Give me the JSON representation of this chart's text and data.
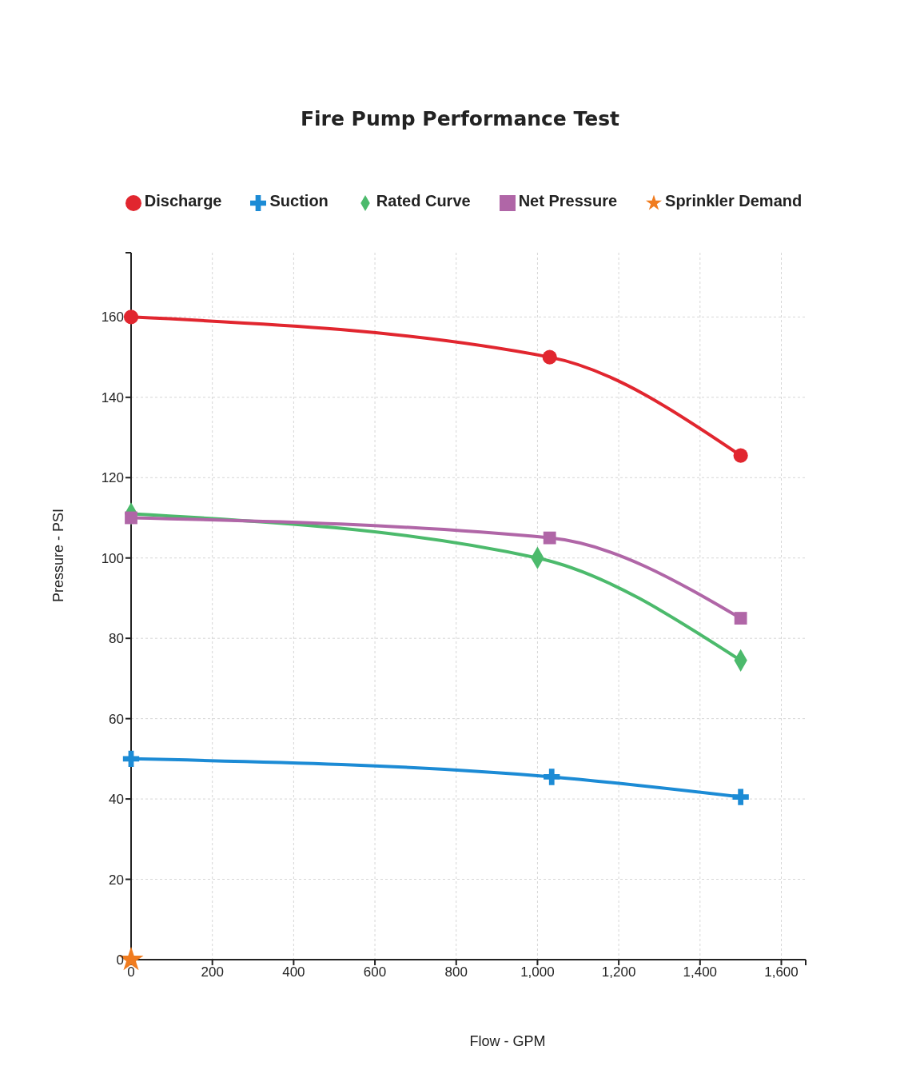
{
  "chart_data": {
    "type": "line",
    "title": "Fire Pump Performance Test",
    "xlabel": "Flow - GPM",
    "ylabel": "Pressure - PSI",
    "xlim": [
      0,
      1660
    ],
    "xticks": [
      0,
      200,
      400,
      600,
      800,
      {
        "value": 1000,
        "label": "1,000"
      },
      {
        "value": 1200,
        "label": "1,200"
      },
      {
        "value": 1400,
        "label": "1,400"
      },
      {
        "value": 1600,
        "label": "1,600"
      },
      {
        "value": 1660,
        "label": null
      }
    ],
    "ylim": [
      0,
      176
    ],
    "yticks": [
      0,
      20,
      40,
      60,
      80,
      100,
      120,
      140,
      160,
      {
        "value": 176,
        "label": null
      }
    ],
    "grid": true,
    "legend": "top",
    "line_style": "solid",
    "series": [
      {
        "name": "Discharge",
        "color": "#e1262f",
        "marker": "circle",
        "x": [
          0,
          1030,
          1500
        ],
        "values": [
          160,
          150,
          125.5
        ]
      },
      {
        "name": "Suction",
        "color": "#1c8bd5",
        "marker": "cross",
        "x": [
          0,
          1035,
          1500
        ],
        "values": [
          50,
          45.5,
          40.5
        ]
      },
      {
        "name": "Rated Curve",
        "color": "#4cba6c",
        "marker": "diamond",
        "x": [
          0,
          1000,
          1500
        ],
        "values": [
          111,
          100,
          74.5
        ]
      },
      {
        "name": "Net Pressure",
        "color": "#b066a7",
        "marker": "square",
        "x": [
          0,
          1030,
          1500
        ],
        "values": [
          110,
          105,
          85
        ]
      },
      {
        "name": "Sprinkler Demand",
        "type": "scatter",
        "color": "#f07c1f",
        "marker": "star",
        "x": [
          0
        ],
        "values": [
          0
        ]
      }
    ]
  }
}
